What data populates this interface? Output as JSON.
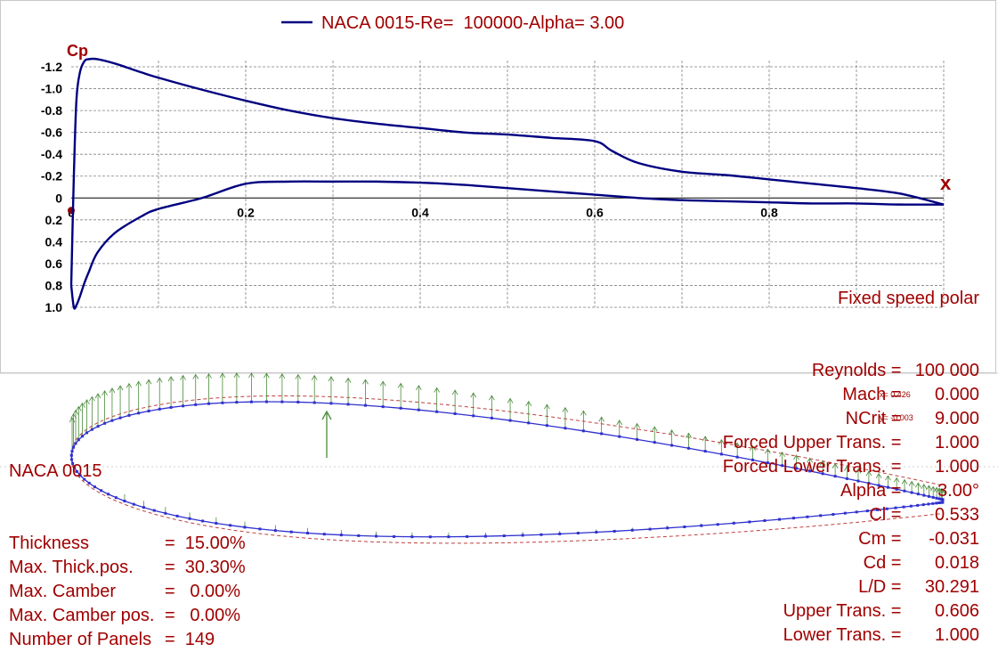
{
  "colors": {
    "curve": "#000080",
    "text": "#a00000",
    "grid": "#808080",
    "axis_label": "#a00000",
    "vectors": "#4a8a3a",
    "mesh": "#3030d0",
    "boundary": "#c04040"
  },
  "legend": {
    "label": "NACA 0015-Re=  100000-Alpha= 3.00"
  },
  "axes": {
    "y_title": "Cp",
    "x_title": "x",
    "y_ticks": [
      "-1.2",
      "-1.0",
      "-0.8",
      "-0.6",
      "-0.4",
      "-0.2",
      "0",
      "0.2",
      "0.4",
      "0.6",
      "0.8",
      "1.0"
    ],
    "x_ticks": [
      "0",
      "0.2",
      "0.4",
      "0.6",
      "0.8"
    ]
  },
  "chart_data": {
    "type": "line",
    "title": "",
    "xlabel": "x",
    "ylabel": "Cp",
    "xlim": [
      0,
      1
    ],
    "ylim": [
      1.0,
      -1.2
    ],
    "ylim_note_inverted": true,
    "grid": true,
    "legend_placement": "top-center",
    "series": [
      {
        "name": "NACA 0015-Re=  100000-Alpha= 3.00",
        "upper": {
          "x": [
            0.0,
            0.003,
            0.006,
            0.01,
            0.015,
            0.02,
            0.03,
            0.05,
            0.08,
            0.1,
            0.15,
            0.2,
            0.25,
            0.3,
            0.35,
            0.4,
            0.45,
            0.5,
            0.55,
            0.6,
            0.62,
            0.65,
            0.7,
            0.75,
            0.8,
            0.85,
            0.9,
            0.95,
            1.0
          ],
          "y": [
            0.8,
            -0.2,
            -0.9,
            -1.15,
            -1.25,
            -1.27,
            -1.27,
            -1.23,
            -1.15,
            -1.1,
            -0.99,
            -0.89,
            -0.8,
            -0.73,
            -0.68,
            -0.64,
            -0.6,
            -0.58,
            -0.55,
            -0.52,
            -0.43,
            -0.32,
            -0.24,
            -0.21,
            -0.17,
            -0.13,
            -0.09,
            -0.04,
            0.06
          ]
        },
        "lower": {
          "x": [
            0.0,
            0.003,
            0.006,
            0.01,
            0.015,
            0.02,
            0.03,
            0.05,
            0.08,
            0.1,
            0.15,
            0.2,
            0.25,
            0.3,
            0.35,
            0.4,
            0.45,
            0.5,
            0.55,
            0.6,
            0.65,
            0.7,
            0.75,
            0.8,
            0.85,
            0.9,
            0.95,
            1.0
          ],
          "y": [
            0.8,
            1.0,
            0.98,
            0.9,
            0.78,
            0.68,
            0.5,
            0.32,
            0.17,
            0.1,
            0.0,
            -0.13,
            -0.15,
            -0.15,
            -0.15,
            -0.14,
            -0.12,
            -0.09,
            -0.06,
            -0.03,
            0.0,
            0.02,
            0.03,
            0.04,
            0.05,
            0.05,
            0.06,
            0.06
          ]
        }
      }
    ]
  },
  "polar_info": {
    "title": "Fixed speed polar",
    "rows": [
      {
        "label": "Reynolds = ",
        "value": "100 000"
      },
      {
        "label": "Mach = ",
        "value": "0.000"
      },
      {
        "label": "NCrit = ",
        "value": "9.000"
      },
      {
        "label": "Forced Upper Trans. = ",
        "value": "1.000"
      },
      {
        "label": "Forced Lower Trans. = ",
        "value": "1.000"
      },
      {
        "label": "Alpha = ",
        "value": "3.00°"
      },
      {
        "label": "Cl = ",
        "value": "0.533"
      },
      {
        "label": "Cm = ",
        "value": "-0.031"
      },
      {
        "label": "Cd = ",
        "value": "0.018"
      },
      {
        "label": "L/D = ",
        "value": "30.291"
      },
      {
        "label": "Upper Trans. = ",
        "value": "0.606"
      },
      {
        "label": "Lower Trans. = ",
        "value": "1.000"
      }
    ]
  },
  "foil_info": {
    "name": "NACA 0015",
    "rows": [
      {
        "label": "Thickness",
        "value": "=  15.00%"
      },
      {
        "label": "Max. Thick.pos.",
        "value": "=  30.30%"
      },
      {
        "label": "Max. Camber",
        "value": "=   0.00%"
      },
      {
        "label": "Max. Camber pos.",
        "value": "=   0.00%"
      },
      {
        "label": "Number of Panels",
        "value": "=  149"
      }
    ]
  },
  "cursor_readout": {
    "x": "x= 0.426",
    "y": "y= -0.003"
  }
}
